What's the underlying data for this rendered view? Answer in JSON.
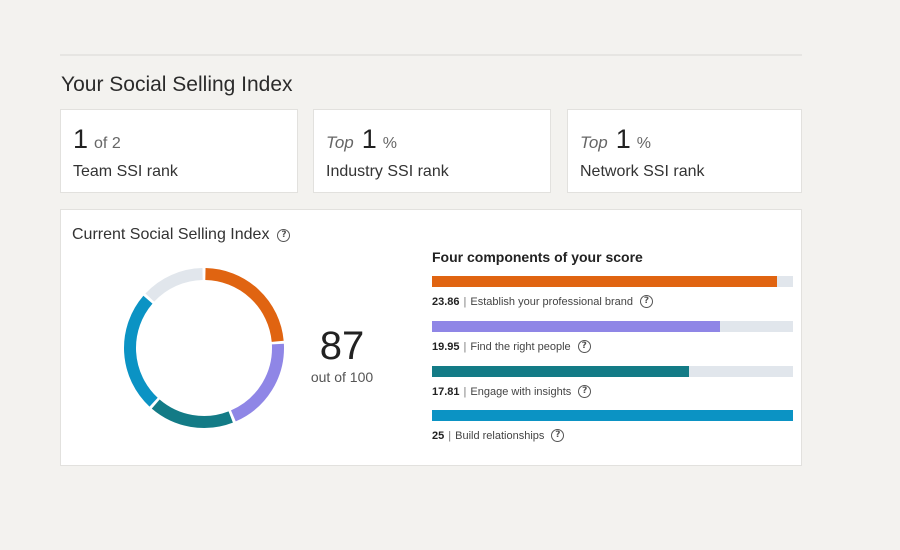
{
  "page": {
    "title": "Your Social Selling Index"
  },
  "ranks": [
    {
      "prefix": "",
      "value": "1",
      "suffix": "of 2",
      "label": "Team SSI rank"
    },
    {
      "prefix": "Top",
      "value": "1",
      "suffix": "%",
      "label": "Industry SSI rank"
    },
    {
      "prefix": "Top",
      "value": "1",
      "suffix": "%",
      "label": "Network SSI rank"
    }
  ],
  "ssi": {
    "title": "Current Social Selling Index",
    "help_icon": "question-circle-icon",
    "score": "87",
    "score_caption": "out of 100",
    "max": 100,
    "remainder_color": "#e1e6ec"
  },
  "components": {
    "title": "Four components of your score",
    "max_each": 25,
    "items": [
      {
        "score": "23.86",
        "value": 23.86,
        "label": "Establish your professional brand",
        "color": "#e06411"
      },
      {
        "score": "19.95",
        "value": 19.95,
        "label": "Find the right people",
        "color": "#8f86e6"
      },
      {
        "score": "17.81",
        "value": 17.81,
        "label": "Engage with insights",
        "color": "#137b86"
      },
      {
        "score": "25",
        "value": 25,
        "label": "Build relationships",
        "color": "#0b93c4"
      }
    ]
  }
}
